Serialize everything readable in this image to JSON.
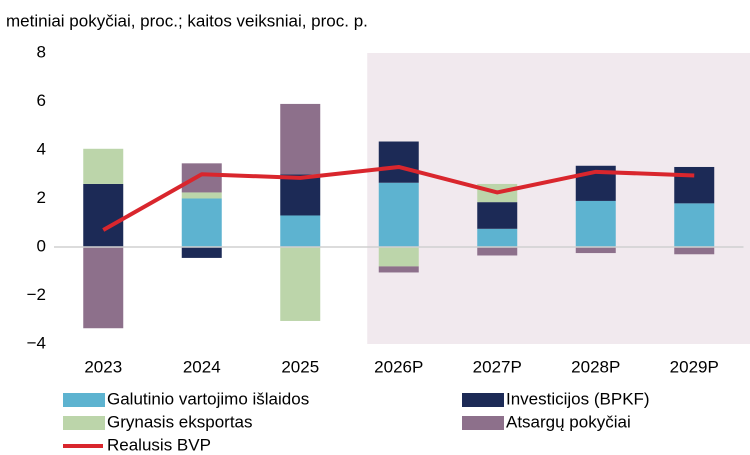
{
  "chart_data": {
    "type": "bar",
    "stacked": true,
    "subtitle": "metiniai pokyčiai, proc.; kaitos veiksniai, proc. p.",
    "categories": [
      "2023",
      "2024",
      "2025",
      "2026P",
      "2027P",
      "2028P",
      "2029P"
    ],
    "highlight_from": "2026P",
    "highlight_color": "#f1e9ee",
    "series": [
      {
        "name": "Galutinio vartojimo išlaidos",
        "color": "#5db3d0",
        "values": [
          0,
          2.0,
          1.3,
          2.65,
          0.75,
          1.9,
          1.8
        ]
      },
      {
        "name": "Investicijos (BPKF)",
        "color": "#1c2a56",
        "values": [
          2.6,
          -0.45,
          1.7,
          1.7,
          1.1,
          1.45,
          1.5
        ]
      },
      {
        "name": "Grynasis eksportas",
        "color": "#bcd5aa",
        "values": [
          1.45,
          0.25,
          -3.05,
          -0.8,
          0.75,
          0,
          0
        ]
      },
      {
        "name": "Atsargų pokyčiai",
        "color": "#8d708b",
        "values": [
          -3.35,
          1.2,
          2.9,
          -0.25,
          -0.35,
          -0.25,
          -0.3
        ]
      },
      {
        "name": "Realusis BVP",
        "type": "line",
        "color": "#d9262d",
        "values": [
          0.7,
          3.0,
          2.85,
          3.3,
          2.25,
          3.1,
          2.95
        ]
      }
    ],
    "ylim": [
      -4,
      8
    ],
    "yticks": [
      {
        "value": -4,
        "label": "−4"
      },
      {
        "value": -2,
        "label": "−2"
      },
      0,
      2,
      4,
      6,
      8
    ]
  }
}
